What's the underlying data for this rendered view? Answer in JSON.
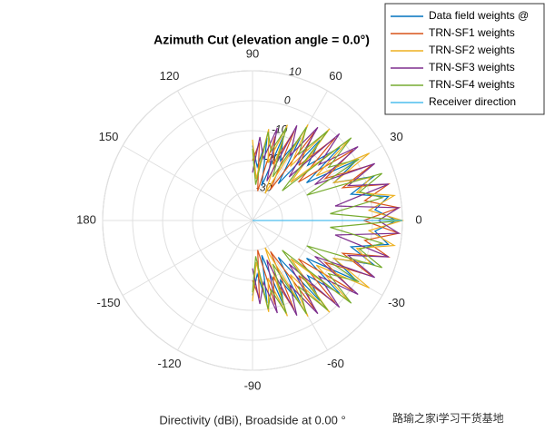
{
  "chart_data": {
    "type": "polar_line",
    "title": "Azimuth Cut (elevation angle = 0.0°)",
    "xlabel": "Directivity (dBi), Broadside at 0.00 °",
    "watermark": "路瑜之家i学习干货基地",
    "thetaticks": [
      0,
      30,
      60,
      90,
      120,
      150,
      180,
      -150,
      -120,
      -90,
      -60,
      -30
    ],
    "rlim": [
      -40,
      10
    ],
    "rticks": [
      -30,
      -20,
      -10,
      0,
      10
    ],
    "grid": true,
    "legend": "upper right",
    "series": [
      {
        "name": "Data field weights @",
        "color": "#0072BD",
        "x": [
          -90,
          -85,
          -80,
          -75,
          -70,
          -65,
          -60,
          -55,
          -50,
          -45,
          -40,
          -35,
          -30,
          -25,
          -20,
          -15,
          -10,
          -5,
          0,
          5,
          10,
          15,
          20,
          25,
          30,
          35,
          40,
          45,
          50,
          55,
          60,
          65,
          70,
          75,
          80,
          85,
          90
        ],
        "values": [
          -15,
          -22,
          -12,
          -28,
          -10,
          -18,
          -8,
          -25,
          -5,
          -14,
          -2,
          -18,
          0,
          -10,
          3,
          -6,
          6,
          1,
          8,
          1,
          6,
          -6,
          3,
          -10,
          0,
          -18,
          -2,
          -14,
          -5,
          -25,
          -8,
          -18,
          -10,
          -28,
          -12,
          -22,
          -15
        ]
      },
      {
        "name": "TRN-SF1 weights",
        "color": "#D95319",
        "x": [
          -90,
          -85,
          -80,
          -75,
          -70,
          -65,
          -60,
          -55,
          -50,
          -45,
          -40,
          -35,
          -30,
          -25,
          -20,
          -15,
          -10,
          -5,
          0,
          5,
          10,
          15,
          20,
          25,
          30,
          35,
          40,
          45,
          50,
          55,
          60,
          65,
          70,
          75,
          80,
          85,
          90
        ],
        "values": [
          -20,
          -14,
          -30,
          -11,
          -20,
          -7,
          -28,
          -4,
          -16,
          -1,
          -20,
          1,
          -12,
          4,
          -8,
          7,
          -2,
          9,
          -3,
          9,
          -2,
          7,
          -8,
          4,
          -12,
          1,
          -20,
          -1,
          -16,
          -4,
          -28,
          -7,
          -20,
          -11,
          -30,
          -14,
          -20
        ]
      },
      {
        "name": "TRN-SF2 weights",
        "color": "#EDB120",
        "x": [
          -90,
          -85,
          -80,
          -75,
          -70,
          -65,
          -60,
          -55,
          -50,
          -45,
          -40,
          -35,
          -30,
          -25,
          -20,
          -15,
          -10,
          -5,
          0,
          5,
          10,
          15,
          20,
          25,
          30,
          35,
          40,
          45,
          50,
          55,
          60,
          65,
          70,
          75,
          80,
          85,
          90
        ],
        "values": [
          -13,
          -26,
          -9,
          -20,
          -6,
          -30,
          -3,
          -18,
          0,
          -22,
          2,
          -14,
          5,
          -10,
          2,
          -4,
          8,
          -1,
          10,
          -1,
          8,
          -4,
          2,
          -10,
          5,
          -14,
          2,
          -22,
          0,
          -18,
          -3,
          -30,
          -6,
          -20,
          -9,
          -26,
          -13
        ]
      },
      {
        "name": "TRN-SF3 weights",
        "color": "#7E2F8E",
        "x": [
          -90,
          -85,
          -80,
          -75,
          -70,
          -65,
          -60,
          -55,
          -50,
          -45,
          -40,
          -35,
          -30,
          -25,
          -20,
          -15,
          -10,
          -5,
          0,
          5,
          10,
          15,
          20,
          25,
          30,
          35,
          40,
          45,
          50,
          55,
          60,
          65,
          70,
          75,
          80,
          85,
          90
        ],
        "values": [
          -24,
          -12,
          -19,
          -8,
          -26,
          -5,
          -15,
          -2,
          -21,
          1,
          -11,
          3,
          -16,
          5,
          -6,
          7,
          -12,
          9,
          2,
          9,
          -12,
          7,
          -6,
          5,
          -16,
          3,
          -11,
          1,
          -21,
          -2,
          -15,
          -5,
          -26,
          -8,
          -19,
          -12,
          -24
        ]
      },
      {
        "name": "TRN-SF4 weights",
        "color": "#77AC30",
        "x": [
          -90,
          -85,
          -80,
          -75,
          -70,
          -65,
          -60,
          -55,
          -50,
          -45,
          -40,
          -35,
          -30,
          -25,
          -20,
          -15,
          -10,
          -5,
          0,
          5,
          10,
          15,
          20,
          25,
          30,
          35,
          40,
          45,
          50,
          55,
          60,
          65,
          70,
          75,
          80,
          85,
          90
        ],
        "values": [
          -16,
          -28,
          -10,
          -16,
          -7,
          -24,
          -4,
          -13,
          -1,
          -26,
          3,
          -9,
          1,
          -20,
          6,
          -3,
          4,
          -14,
          10,
          -14,
          4,
          -3,
          6,
          -20,
          1,
          -9,
          3,
          -26,
          -1,
          -13,
          -4,
          -24,
          -7,
          -16,
          -10,
          -28,
          -16
        ]
      },
      {
        "name": "Receiver direction",
        "color": "#4DBEEE",
        "x": [
          0,
          0
        ],
        "values": [
          -40,
          10
        ]
      }
    ]
  }
}
